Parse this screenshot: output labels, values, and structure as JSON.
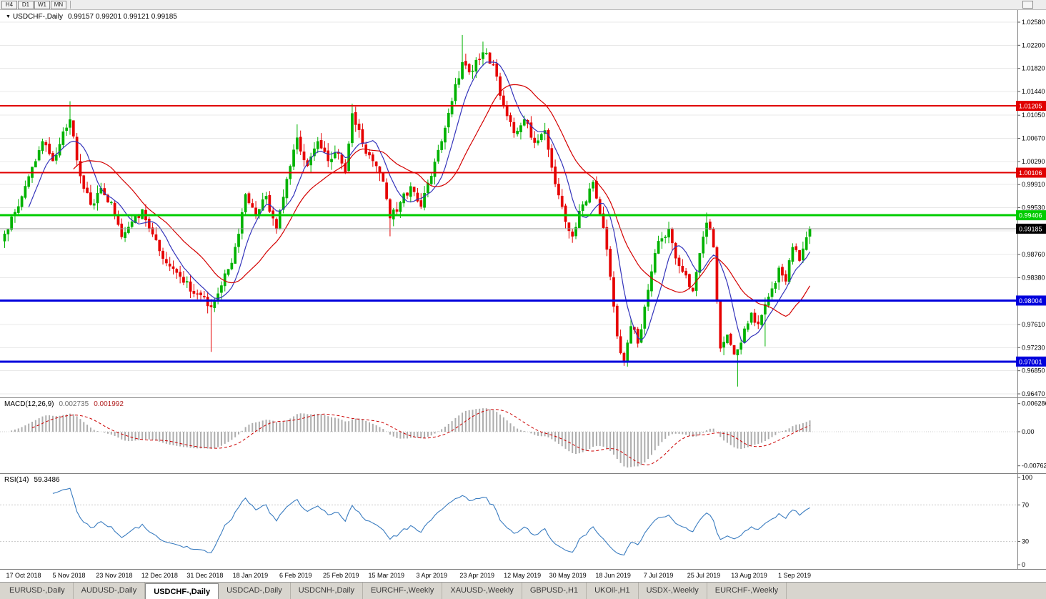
{
  "toolbar": {
    "timeframes": [
      "H4",
      "D1",
      "W1",
      "MN"
    ]
  },
  "main_chart": {
    "symbol_marker": "▼",
    "title": "USDCHF-,Daily",
    "ohlc": "0.99157 0.99201 0.99121 0.99185"
  },
  "macd_panel": {
    "label": "MACD(12,26,9)",
    "value_main": "0.002735",
    "value_signal": "0.001992"
  },
  "rsi_panel": {
    "label": "RSI(14)",
    "value": "59.3486"
  },
  "tabs": {
    "active_index": 2,
    "items": [
      "EURUSD-,Daily",
      "AUDUSD-,Daily",
      "USDCHF-,Daily",
      "USDCAD-,Daily",
      "USDCNH-,Daily",
      "EURCHF-,Weekly",
      "XAUUSD-,Weekly",
      "GBPUSD-,H1",
      "UKOil-,H1",
      "USDX-,Weekly",
      "EURCHF-,Weekly"
    ]
  },
  "chart_data": {
    "type": "candlestick",
    "symbol": "USDCHF",
    "timeframe": "Daily",
    "current_bar": {
      "open": 0.99157,
      "high": 0.99201,
      "low": 0.99121,
      "close": 0.99185
    },
    "price_axis": {
      "range": [
        0.9647,
        1.0258
      ],
      "labels": [
        "1.02580",
        "1.02200",
        "1.01820",
        "1.01440",
        "1.01050",
        "1.00670",
        "1.00290",
        "0.99910",
        "0.99530",
        "0.99150",
        "0.98760",
        "0.98380",
        "0.98000",
        "0.97610",
        "0.97230",
        "0.96850",
        "0.96470"
      ]
    },
    "x_axis": {
      "labels": [
        "17 Oct 2018",
        "5 Nov 2018",
        "23 Nov 2018",
        "12 Dec 2018",
        "31 Dec 2018",
        "18 Jan 2019",
        "6 Feb 2019",
        "25 Feb 2019",
        "15 Mar 2019",
        "3 Apr 2019",
        "23 Apr 2019",
        "12 May 2019",
        "30 May 2019",
        "18 Jun 2019",
        "7 Jul 2019",
        "25 Jul 2019",
        "13 Aug 2019",
        "1 Sep 2019"
      ]
    },
    "levels": [
      {
        "price": 1.01205,
        "label": "1.01205",
        "color": "#E00000",
        "width": 2,
        "role": "resistance"
      },
      {
        "price": 1.00106,
        "label": "1.00106",
        "color": "#E00000",
        "width": 2,
        "role": "resistance"
      },
      {
        "price": 0.99406,
        "label": "0.99406",
        "color": "#00CC00",
        "width": 3,
        "role": "resistance"
      },
      {
        "price": 0.99185,
        "label": "0.99185",
        "color": "#000000",
        "width": 1,
        "role": "current-price"
      },
      {
        "price": 0.98004,
        "label": "0.98004",
        "color": "#0000DC",
        "width": 3,
        "role": "support"
      },
      {
        "price": 0.97001,
        "label": "0.97001",
        "color": "#0000DC",
        "width": 3,
        "role": "support"
      }
    ],
    "colors": {
      "up": "#00B200",
      "down": "#E60000",
      "ma_fast": "#3434BB",
      "ma_slow": "#D40000",
      "macd_hist": "#ADADAD",
      "macd_signal": "#CC0000",
      "rsi": "#3A7CC0",
      "grid": "#E8E8E8"
    },
    "moving_averages": [
      {
        "period": 8,
        "color_key": "ma_fast"
      },
      {
        "period": 21,
        "color_key": "ma_slow"
      }
    ],
    "macd": {
      "fast": 12,
      "slow": 26,
      "signal": 9,
      "axis_labels": [
        "0.006286",
        "0.00",
        "-0.00762"
      ]
    },
    "rsi": {
      "period": 14,
      "axis_labels": [
        "100",
        "70",
        "30",
        "0"
      ],
      "levels": [
        70,
        30
      ]
    },
    "candle_count": 235,
    "close_anchors": [
      [
        0,
        0.991
      ],
      [
        4,
        0.9955
      ],
      [
        8,
        1.002
      ],
      [
        11,
        1.0062
      ],
      [
        14,
        1.003
      ],
      [
        17,
        1.0078
      ],
      [
        19,
        1.0098
      ],
      [
        22,
        1.0005
      ],
      [
        25,
        0.9958
      ],
      [
        28,
        0.9985
      ],
      [
        31,
        0.9962
      ],
      [
        34,
        0.9905
      ],
      [
        37,
        0.993
      ],
      [
        40,
        0.995
      ],
      [
        44,
        0.99
      ],
      [
        47,
        0.9862
      ],
      [
        51,
        0.984
      ],
      [
        55,
        0.9812
      ],
      [
        58,
        0.9806
      ],
      [
        60,
        0.979
      ],
      [
        63,
        0.9825
      ],
      [
        66,
        0.9862
      ],
      [
        70,
        0.9975
      ],
      [
        73,
        0.994
      ],
      [
        76,
        0.9972
      ],
      [
        79,
        0.9918
      ],
      [
        82,
        1.0
      ],
      [
        85,
        1.0068
      ],
      [
        88,
        1.0022
      ],
      [
        91,
        1.0062
      ],
      [
        94,
        1.003
      ],
      [
        97,
        1.0042
      ],
      [
        99,
        1.0012
      ],
      [
        101,
        1.0108
      ],
      [
        104,
        1.0058
      ],
      [
        107,
        1.003
      ],
      [
        110,
        0.9996
      ],
      [
        112,
        0.9936
      ],
      [
        115,
        0.9962
      ],
      [
        118,
        0.9988
      ],
      [
        121,
        0.9955
      ],
      [
        124,
        1.0005
      ],
      [
        127,
        1.0062
      ],
      [
        130,
        1.0128
      ],
      [
        133,
        1.0192
      ],
      [
        136,
        1.0178
      ],
      [
        139,
        1.0208
      ],
      [
        142,
        1.0188
      ],
      [
        145,
        1.0122
      ],
      [
        148,
        1.0076
      ],
      [
        151,
        1.0098
      ],
      [
        154,
        1.006
      ],
      [
        157,
        1.008
      ],
      [
        160,
        0.9992
      ],
      [
        163,
        0.993
      ],
      [
        165,
        0.9906
      ],
      [
        168,
        0.9958
      ],
      [
        171,
        0.9995
      ],
      [
        174,
        0.992
      ],
      [
        176,
        0.984
      ],
      [
        178,
        0.9742
      ],
      [
        180,
        0.97
      ],
      [
        182,
        0.9758
      ],
      [
        184,
        0.973
      ],
      [
        186,
        0.979
      ],
      [
        188,
        0.9848
      ],
      [
        190,
        0.9898
      ],
      [
        193,
        0.9918
      ],
      [
        195,
        0.987
      ],
      [
        198,
        0.9842
      ],
      [
        200,
        0.9816
      ],
      [
        202,
        0.9878
      ],
      [
        204,
        0.9928
      ],
      [
        206,
        0.9888
      ],
      [
        208,
        0.9722
      ],
      [
        210,
        0.9744
      ],
      [
        212,
        0.9712
      ],
      [
        213,
        0.972
      ],
      [
        215,
        0.9754
      ],
      [
        217,
        0.978
      ],
      [
        219,
        0.9762
      ],
      [
        221,
        0.9794
      ],
      [
        223,
        0.982
      ],
      [
        225,
        0.9854
      ],
      [
        227,
        0.9832
      ],
      [
        229,
        0.9888
      ],
      [
        231,
        0.9866
      ],
      [
        233,
        0.9904
      ],
      [
        234,
        0.99185
      ]
    ],
    "wick_extremes": [
      {
        "i": 19,
        "high": 1.0128
      },
      {
        "i": 60,
        "low": 0.9716
      },
      {
        "i": 85,
        "high": 1.009
      },
      {
        "i": 101,
        "high": 1.0124
      },
      {
        "i": 112,
        "low": 0.9906
      },
      {
        "i": 133,
        "high": 1.0237
      },
      {
        "i": 139,
        "high": 1.0226
      },
      {
        "i": 180,
        "low": 0.9693
      },
      {
        "i": 204,
        "high": 0.9945
      },
      {
        "i": 213,
        "low": 0.9659
      },
      {
        "i": 221,
        "low": 0.9725
      }
    ]
  }
}
